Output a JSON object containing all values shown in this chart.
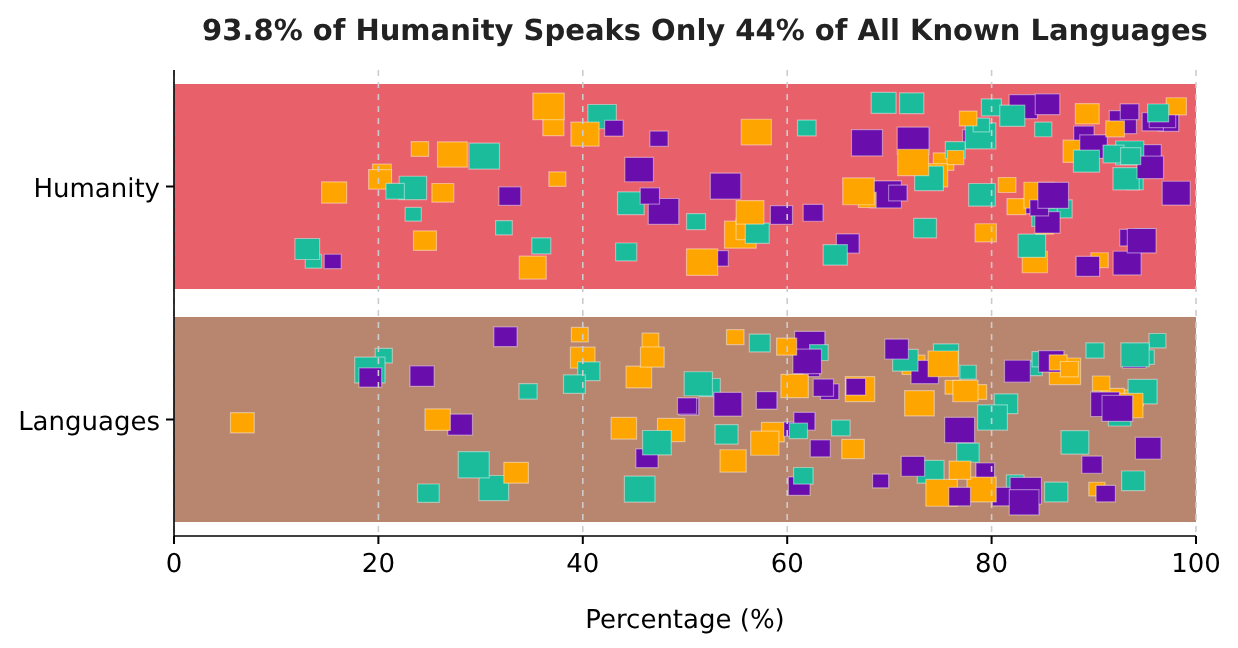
{
  "chart_data": {
    "type": "bar",
    "orientation": "horizontal",
    "title": "93.8% of Humanity Speaks Only 44% of All Known Languages",
    "xlabel": "Percentage (%)",
    "categories": [
      "Humanity",
      "Languages"
    ],
    "values": [
      100,
      100
    ],
    "colors": [
      "#e8606a",
      "#b8866e"
    ],
    "xlim": [
      0,
      100
    ],
    "xticks": [
      0,
      20,
      40,
      60,
      80,
      100
    ],
    "grid": "x"
  }
}
